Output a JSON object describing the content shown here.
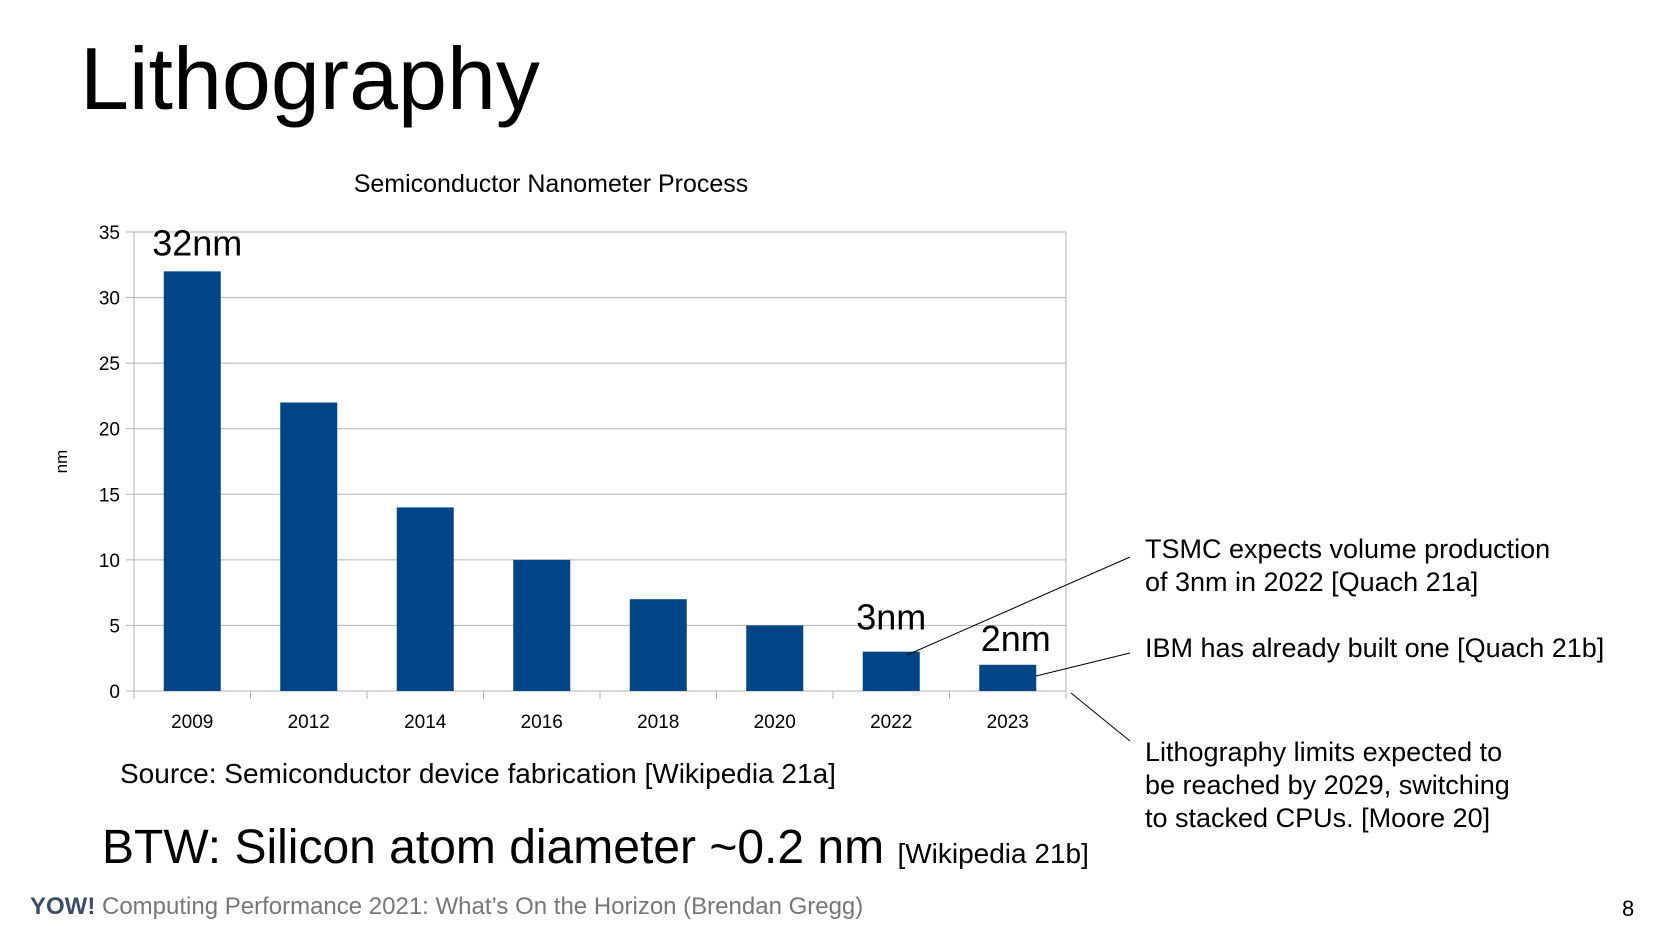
{
  "slide": {
    "title": "Lithography",
    "source": "Source: Semiconductor device fabrication [Wikipedia 21a]",
    "btw": "BTW: Silicon atom diameter ~0.2 nm",
    "btw_ref": "[Wikipedia 21b]",
    "footer_brand": "YOW!",
    "footer_text": "Computing Performance 2021: What’s On the Horizon (Brendan Gregg)",
    "page_number": "8",
    "notes": [
      {
        "lines": [
          "TSMC expects volume production",
          "of 3nm in 2022 [Quach 21a]"
        ]
      },
      {
        "lines": [
          "IBM has already built one [Quach 21b]"
        ]
      },
      {
        "lines": [
          "Lithography limits expected to",
          "be reached by 2029, switching",
          "to stacked CPUs. [Moore 20]"
        ]
      }
    ]
  },
  "chart_data": {
    "type": "bar",
    "title": "Semiconductor Nanometer Process",
    "xlabel": "",
    "ylabel": "nm",
    "ylim": [
      0,
      35
    ],
    "yticks": [
      0,
      5,
      10,
      15,
      20,
      25,
      30,
      35
    ],
    "grid": true,
    "categories": [
      "2009",
      "2012",
      "2014",
      "2016",
      "2018",
      "2020",
      "2022",
      "2023"
    ],
    "values": [
      32,
      22,
      14,
      10,
      7,
      5,
      3,
      2
    ],
    "bar_color": "#004586",
    "annotations": [
      {
        "category": "2009",
        "text": "32nm"
      },
      {
        "category": "2022",
        "text": "3nm"
      },
      {
        "category": "2023",
        "text": "2nm"
      }
    ]
  }
}
